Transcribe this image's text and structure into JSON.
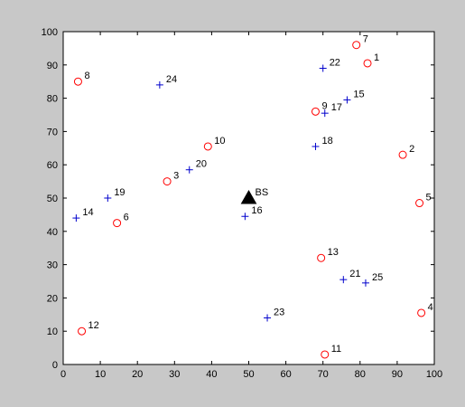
{
  "chart_data": {
    "type": "scatter",
    "title": "",
    "xlabel": "",
    "ylabel": "",
    "xlim": [
      0,
      100
    ],
    "ylim": [
      0,
      100
    ],
    "grid": false,
    "x_ticks": [
      "0",
      "10",
      "20",
      "30",
      "40",
      "50",
      "60",
      "70",
      "80",
      "90",
      "100"
    ],
    "y_ticks": [
      "0",
      "10",
      "20",
      "30",
      "40",
      "50",
      "60",
      "70",
      "80",
      "90",
      "100"
    ],
    "series": [
      {
        "marker": "circle",
        "color": "#ff0000",
        "points": [
          {
            "label": "1",
            "x": 82,
            "y": 90.5
          },
          {
            "label": "2",
            "x": 91.5,
            "y": 63
          },
          {
            "label": "3",
            "x": 28,
            "y": 55
          },
          {
            "label": "4",
            "x": 96.5,
            "y": 15.5
          },
          {
            "label": "5",
            "x": 96,
            "y": 48.5
          },
          {
            "label": "6",
            "x": 14.5,
            "y": 42.5
          },
          {
            "label": "7",
            "x": 79,
            "y": 96
          },
          {
            "label": "8",
            "x": 4,
            "y": 85
          },
          {
            "label": "9",
            "x": 68,
            "y": 76
          },
          {
            "label": "10",
            "x": 39,
            "y": 65.5
          },
          {
            "label": "11",
            "x": 70.5,
            "y": 3
          },
          {
            "label": "12",
            "x": 5,
            "y": 10
          },
          {
            "label": "13",
            "x": 69.5,
            "y": 32
          }
        ]
      },
      {
        "marker": "plus",
        "color": "#0000cc",
        "points": [
          {
            "label": "14",
            "x": 3.5,
            "y": 44
          },
          {
            "label": "15",
            "x": 76.5,
            "y": 79.5
          },
          {
            "label": "16",
            "x": 49,
            "y": 44.5
          },
          {
            "label": "17",
            "x": 70.5,
            "y": 75.5
          },
          {
            "label": "18",
            "x": 68,
            "y": 65.5
          },
          {
            "label": "19",
            "x": 12,
            "y": 50
          },
          {
            "label": "20",
            "x": 34,
            "y": 58.5
          },
          {
            "label": "21",
            "x": 75.5,
            "y": 25.5
          },
          {
            "label": "22",
            "x": 70,
            "y": 89
          },
          {
            "label": "23",
            "x": 55,
            "y": 14
          },
          {
            "label": "24",
            "x": 26,
            "y": 84
          },
          {
            "label": "25",
            "x": 81.5,
            "y": 24.5
          }
        ]
      },
      {
        "marker": "triangle",
        "color": "#000000",
        "points": [
          {
            "label": "BS",
            "x": 50,
            "y": 50
          }
        ]
      }
    ]
  }
}
